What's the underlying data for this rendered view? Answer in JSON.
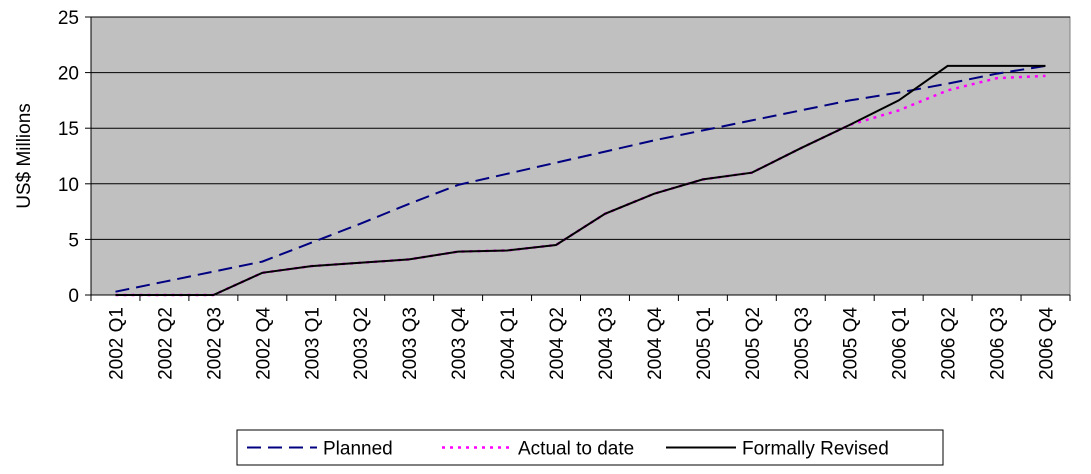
{
  "chart_data": {
    "type": "line",
    "title": "",
    "xlabel": "",
    "ylabel": "US$ Millions",
    "ylim": [
      0,
      25
    ],
    "yticks": [
      0,
      5,
      10,
      15,
      20,
      25
    ],
    "grid": "horizontal",
    "legend_position": "bottom",
    "plot_background": "#c0c0c0",
    "categories": [
      "2002 Q1",
      "2002 Q2",
      "2002 Q3",
      "2002 Q4",
      "2003 Q1",
      "2003 Q2",
      "2003 Q3",
      "2003 Q4",
      "2004 Q1",
      "2004 Q2",
      "2004 Q3",
      "2004 Q4",
      "2005 Q1",
      "2005 Q2",
      "2005 Q3",
      "2005 Q4",
      "2006 Q1",
      "2006 Q2",
      "2006 Q3",
      "2006 Q4"
    ],
    "series": [
      {
        "name": "Planned",
        "color": "#000080",
        "style": "dashed",
        "values": [
          0.3,
          1.2,
          2.1,
          3.0,
          4.7,
          6.4,
          8.2,
          9.9,
          10.9,
          11.9,
          12.9,
          13.9,
          14.8,
          15.7,
          16.6,
          17.5,
          18.2,
          19.0,
          19.9,
          20.6
        ]
      },
      {
        "name": "Actual to date",
        "color": "#ff00ff",
        "style": "dotted",
        "values": [
          0,
          0,
          0,
          2.0,
          2.6,
          2.9,
          3.2,
          3.9,
          4.0,
          4.5,
          7.3,
          9.1,
          10.4,
          11.0,
          13.2,
          15.3,
          16.6,
          18.4,
          19.5,
          19.7
        ]
      },
      {
        "name": "Formally Revised",
        "color": "#000000",
        "style": "solid",
        "values": [
          0,
          0,
          0,
          2.0,
          2.6,
          2.9,
          3.2,
          3.9,
          4.0,
          4.5,
          7.3,
          9.1,
          10.4,
          11.0,
          13.2,
          15.3,
          17.5,
          20.6,
          20.6,
          20.6
        ]
      }
    ]
  }
}
